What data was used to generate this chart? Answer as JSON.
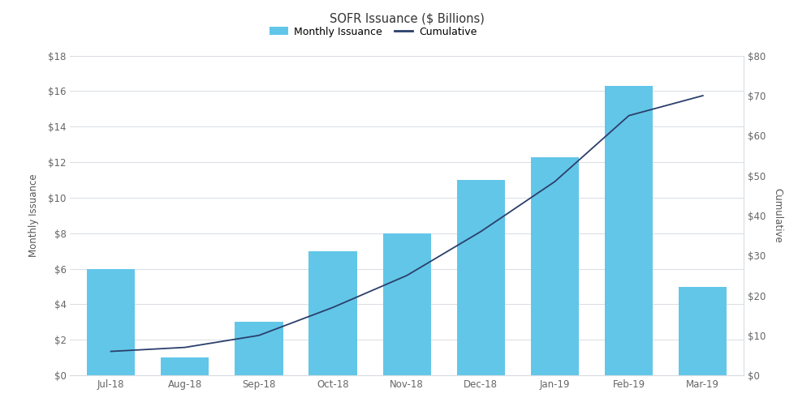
{
  "title": "SOFR Issuance ($ Billions)",
  "categories": [
    "Jul-18",
    "Aug-18",
    "Sep-18",
    "Oct-18",
    "Nov-18",
    "Dec-18",
    "Jan-19",
    "Feb-19",
    "Mar-19"
  ],
  "monthly_values": [
    6.0,
    1.0,
    3.0,
    7.0,
    8.0,
    11.0,
    12.3,
    16.3,
    5.0
  ],
  "cumulative_values": [
    6.0,
    7.0,
    10.0,
    17.0,
    25.0,
    36.0,
    48.5,
    65.0,
    70.0
  ],
  "bar_color": "#62c6e8",
  "line_color": "#2b3f6b",
  "left_ylim": [
    0,
    18
  ],
  "right_ylim": [
    0,
    80
  ],
  "left_yticks": [
    0,
    2,
    4,
    6,
    8,
    10,
    12,
    14,
    16,
    18
  ],
  "right_yticks": [
    0,
    10,
    20,
    30,
    40,
    50,
    60,
    70,
    80
  ],
  "ylabel_left": "Monthly Issuance",
  "ylabel_right": "Cumulative",
  "legend_monthly": "Monthly Issuance",
  "legend_cumulative": "Cumulative",
  "background_color": "#ffffff",
  "grid_color": "#d8dde3",
  "title_fontsize": 10.5,
  "axis_label_fontsize": 8.5,
  "tick_fontsize": 8.5,
  "bar_width": 0.65
}
